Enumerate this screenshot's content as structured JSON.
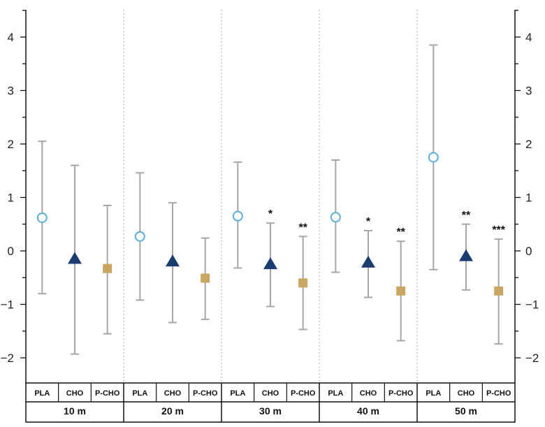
{
  "chart_data": {
    "type": "scatter",
    "title": "",
    "xlabel": "",
    "ylabel": "",
    "ylim": [
      -2.5,
      4.5
    ],
    "yticks": [
      "4",
      "3",
      "2",
      "1",
      "0",
      "−1",
      "−2"
    ],
    "y_tick_values": [
      4,
      3,
      2,
      1,
      0,
      -1,
      -2
    ],
    "groups": [
      "10 m",
      "20 m",
      "30 m",
      "40 m",
      "50 m"
    ],
    "conditions": [
      "PLA",
      "CHO",
      "P-CHO"
    ],
    "grid": false,
    "group_separators": "dotted",
    "colors": {
      "PLA": "#5aaedc",
      "CHO": "#1b3c6e",
      "P-CHO": "#c9a661",
      "error_bar": "#a6a6a6"
    },
    "markers": {
      "PLA": "open-circle",
      "CHO": "filled-triangle",
      "P-CHO": "filled-square"
    },
    "series": [
      {
        "condition": "PLA",
        "group": "10 m",
        "mean": 0.62,
        "low": -0.8,
        "high": 2.05,
        "sig": ""
      },
      {
        "condition": "CHO",
        "group": "10 m",
        "mean": -0.15,
        "low": -1.93,
        "high": 1.6,
        "sig": ""
      },
      {
        "condition": "P-CHO",
        "group": "10 m",
        "mean": -0.33,
        "low": -1.55,
        "high": 0.85,
        "sig": ""
      },
      {
        "condition": "PLA",
        "group": "20 m",
        "mean": 0.27,
        "low": -0.92,
        "high": 1.46,
        "sig": ""
      },
      {
        "condition": "CHO",
        "group": "20 m",
        "mean": -0.2,
        "low": -1.34,
        "high": 0.9,
        "sig": ""
      },
      {
        "condition": "P-CHO",
        "group": "20 m",
        "mean": -0.51,
        "low": -1.28,
        "high": 0.24,
        "sig": ""
      },
      {
        "condition": "PLA",
        "group": "30 m",
        "mean": 0.65,
        "low": -0.32,
        "high": 1.66,
        "sig": ""
      },
      {
        "condition": "CHO",
        "group": "30 m",
        "mean": -0.25,
        "low": -1.04,
        "high": 0.52,
        "sig": "*"
      },
      {
        "condition": "P-CHO",
        "group": "30 m",
        "mean": -0.6,
        "low": -1.47,
        "high": 0.27,
        "sig": "**"
      },
      {
        "condition": "PLA",
        "group": "40 m",
        "mean": 0.63,
        "low": -0.4,
        "high": 1.7,
        "sig": ""
      },
      {
        "condition": "CHO",
        "group": "40 m",
        "mean": -0.22,
        "low": -0.87,
        "high": 0.38,
        "sig": "*"
      },
      {
        "condition": "P-CHO",
        "group": "40 m",
        "mean": -0.75,
        "low": -1.68,
        "high": 0.18,
        "sig": "**"
      },
      {
        "condition": "PLA",
        "group": "50 m",
        "mean": 1.75,
        "low": -0.35,
        "high": 3.85,
        "sig": ""
      },
      {
        "condition": "CHO",
        "group": "50 m",
        "mean": -0.1,
        "low": -0.73,
        "high": 0.5,
        "sig": "**"
      },
      {
        "condition": "P-CHO",
        "group": "50 m",
        "mean": -0.75,
        "low": -1.74,
        "high": 0.22,
        "sig": "***"
      }
    ]
  }
}
